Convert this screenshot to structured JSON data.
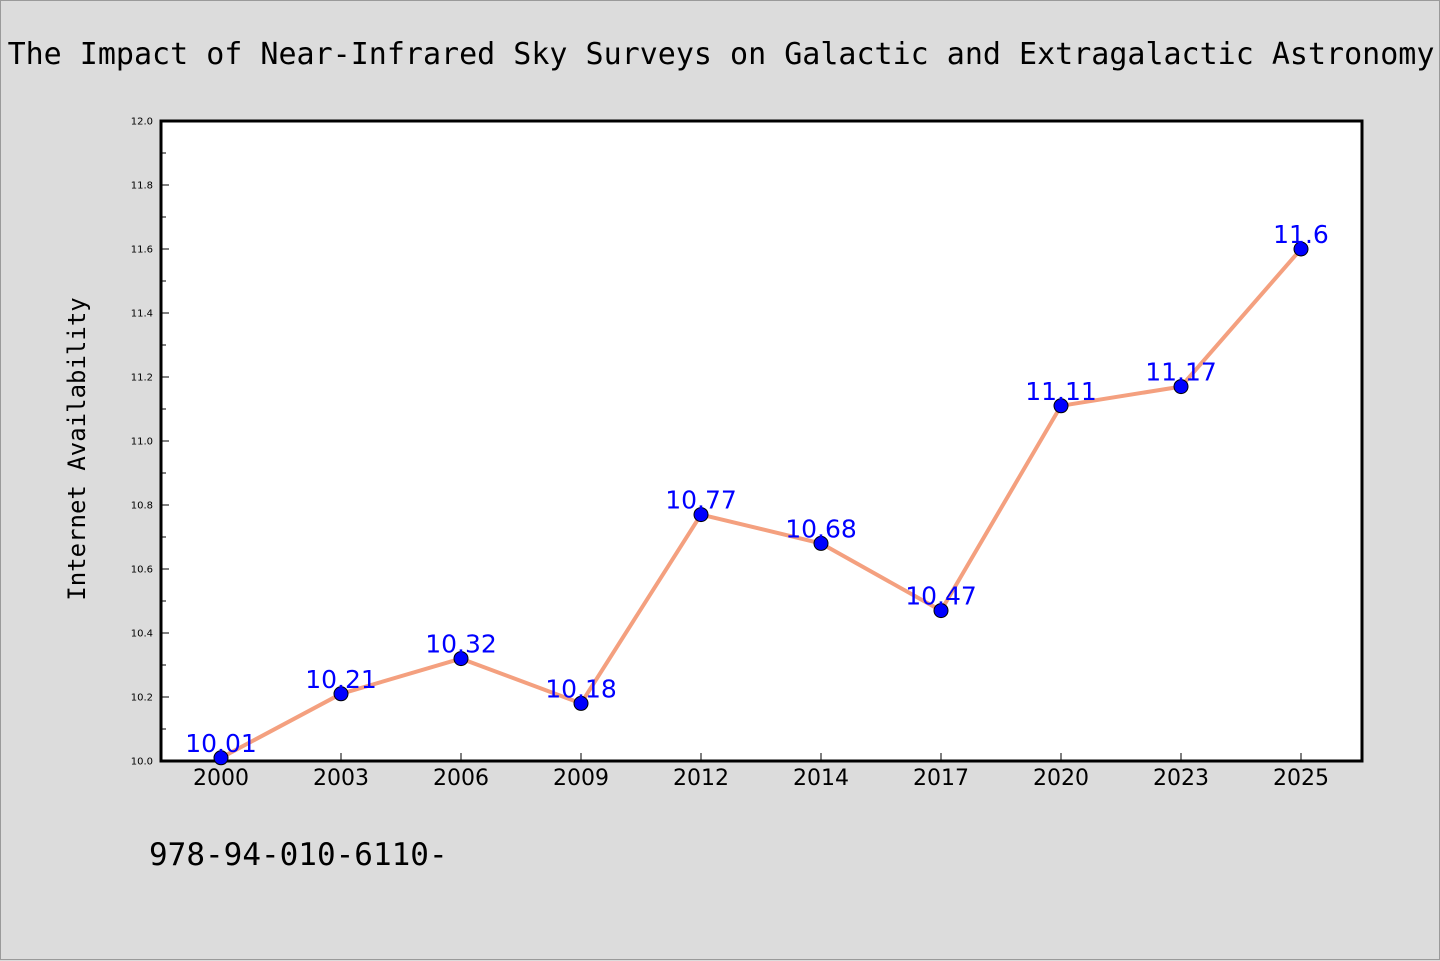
{
  "page": {
    "footnote": "978-94-010-6110-"
  },
  "colors": {
    "background": "#dcdcdc",
    "plot_background": "#ffffff",
    "line": "#f4a07f",
    "marker": "#0000ff",
    "data_label": "#0000ff"
  },
  "chart_data": {
    "type": "line",
    "title": "The Impact of Near-Infrared Sky Surveys on Galactic and Extragalactic Astronomy",
    "xlabel": "",
    "ylabel": "Internet Availability",
    "categories": [
      "2000",
      "2003",
      "2006",
      "2009",
      "2012",
      "2014",
      "2017",
      "2020",
      "2023",
      "2025"
    ],
    "series": [
      {
        "values": [
          10.01,
          10.21,
          10.32,
          10.18,
          10.77,
          10.68,
          10.47,
          11.11,
          11.17,
          11.6
        ],
        "labels": [
          "10.01",
          "10.21",
          "10.32",
          "10.18",
          "10.77",
          "10.68",
          "10.47",
          "11.11",
          "11.17",
          "11.6"
        ]
      }
    ],
    "ylim": [
      10.0,
      12.0
    ],
    "yticks": [
      "10.0",
      "10.2",
      "10.4",
      "10.6",
      "10.8",
      "11.0",
      "11.2",
      "11.4",
      "11.6",
      "11.8",
      "12.0"
    ],
    "grid": false,
    "legend": "none"
  }
}
